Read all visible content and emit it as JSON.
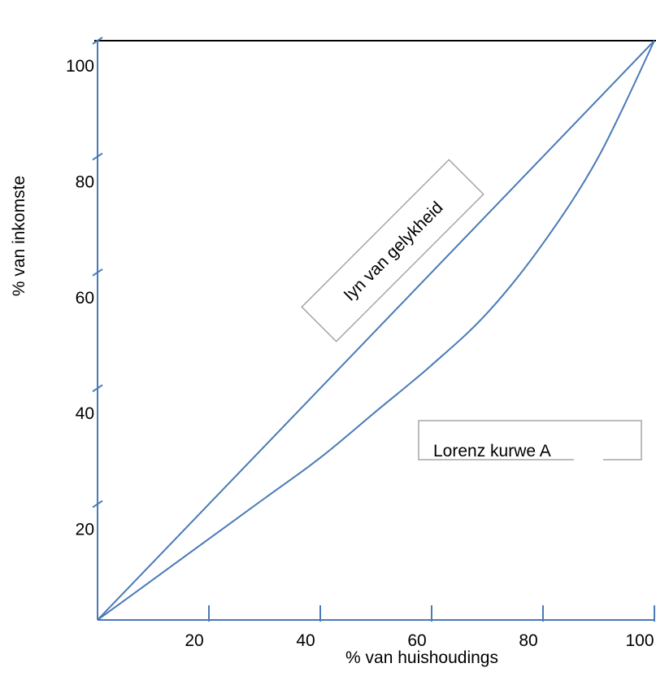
{
  "chart_data": {
    "type": "line",
    "title": "",
    "xlabel": "% van huishoudings",
    "ylabel": "% van inkomste",
    "xlim": [
      0,
      100
    ],
    "ylim": [
      0,
      100
    ],
    "x_ticks": [
      20,
      40,
      60,
      80,
      100
    ],
    "y_ticks": [
      20,
      40,
      60,
      80,
      100
    ],
    "grid": false,
    "series": [
      {
        "name": "Iyn van gelykheid",
        "x": [
          0,
          100
        ],
        "y": [
          0,
          100
        ]
      },
      {
        "name": "Lorenz kurwe A",
        "x": [
          0,
          10,
          20,
          30,
          40,
          50,
          60,
          70,
          80,
          90,
          100
        ],
        "y": [
          0,
          7,
          14,
          21,
          28,
          36,
          44,
          53,
          65,
          80,
          100
        ]
      }
    ],
    "annotations": [
      {
        "text": "Iyn van gelykheid"
      },
      {
        "text": "Lorenz kurwe A"
      }
    ],
    "colors": {
      "line": "#4a7ab7",
      "top_border": "#000000",
      "box_border": "#a6a6a6"
    }
  }
}
